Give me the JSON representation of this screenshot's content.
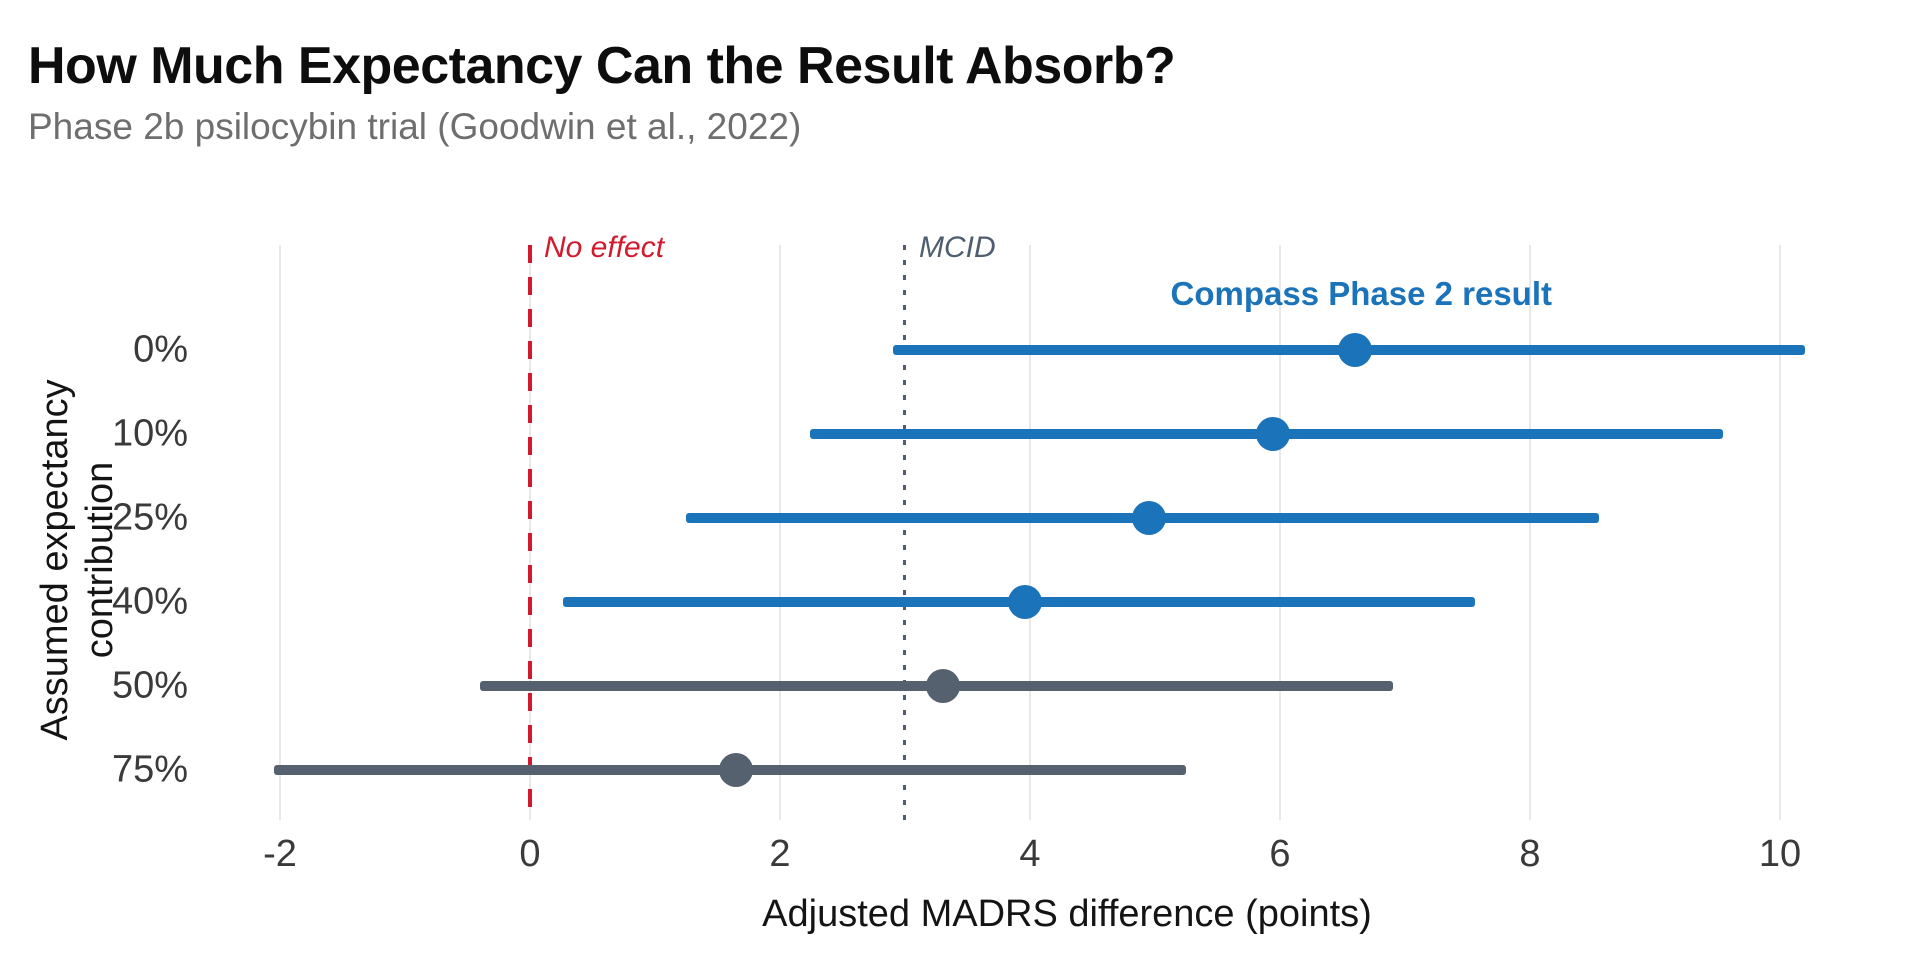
{
  "header": {
    "title": "How Much Expectancy Can the Result Absorb?",
    "subtitle": "Phase 2b psilocybin trial (Goodwin et al., 2022)"
  },
  "chart_data": {
    "type": "scatter",
    "variant": "forest-dot-interval",
    "title": "How Much Expectancy Can the Result Absorb?",
    "subtitle": "Phase 2b psilocybin trial (Goodwin et al., 2022)",
    "xlabel": "Adjusted MADRS difference (points)",
    "ylabel_lines": [
      "Assumed expectancy",
      "contribution"
    ],
    "xlim": [
      -2.4,
      11.0
    ],
    "xticks": [
      -2,
      0,
      2,
      4,
      6,
      8,
      10
    ],
    "grid": "vertical-only",
    "legend": "none",
    "categories": [
      "0%",
      "10%",
      "25%",
      "40%",
      "50%",
      "75%"
    ],
    "points": [
      {
        "category": "0%",
        "estimate": 6.6,
        "ci_low": 2.9,
        "ci_high": 10.2,
        "group": "highlight"
      },
      {
        "category": "10%",
        "estimate": 5.94,
        "ci_low": 2.24,
        "ci_high": 9.54,
        "group": "highlight"
      },
      {
        "category": "25%",
        "estimate": 4.95,
        "ci_low": 1.25,
        "ci_high": 8.55,
        "group": "highlight"
      },
      {
        "category": "40%",
        "estimate": 3.96,
        "ci_low": 0.26,
        "ci_high": 7.56,
        "group": "highlight"
      },
      {
        "category": "50%",
        "estimate": 3.3,
        "ci_low": -0.4,
        "ci_high": 6.9,
        "group": "muted"
      },
      {
        "category": "75%",
        "estimate": 1.65,
        "ci_low": -2.05,
        "ci_high": 5.25,
        "group": "muted"
      }
    ],
    "reference_lines": [
      {
        "value": 0,
        "label": "No effect",
        "style": "dashed",
        "color": "#d2192d"
      },
      {
        "value": 3,
        "label": "MCID",
        "style": "dotted",
        "color": "#4e5d70"
      }
    ],
    "annotations": [
      {
        "text": "Compass Phase 2 result",
        "x": 6.65,
        "color": "#1b73ba"
      }
    ],
    "colors": {
      "highlight": "#1b73ba",
      "muted": "#55616e",
      "grid": "#e8e8e8",
      "tick_text": "#3a3a3a",
      "title_text": "#0d0d0d",
      "subtitle_text": "#6e6e6e"
    }
  }
}
